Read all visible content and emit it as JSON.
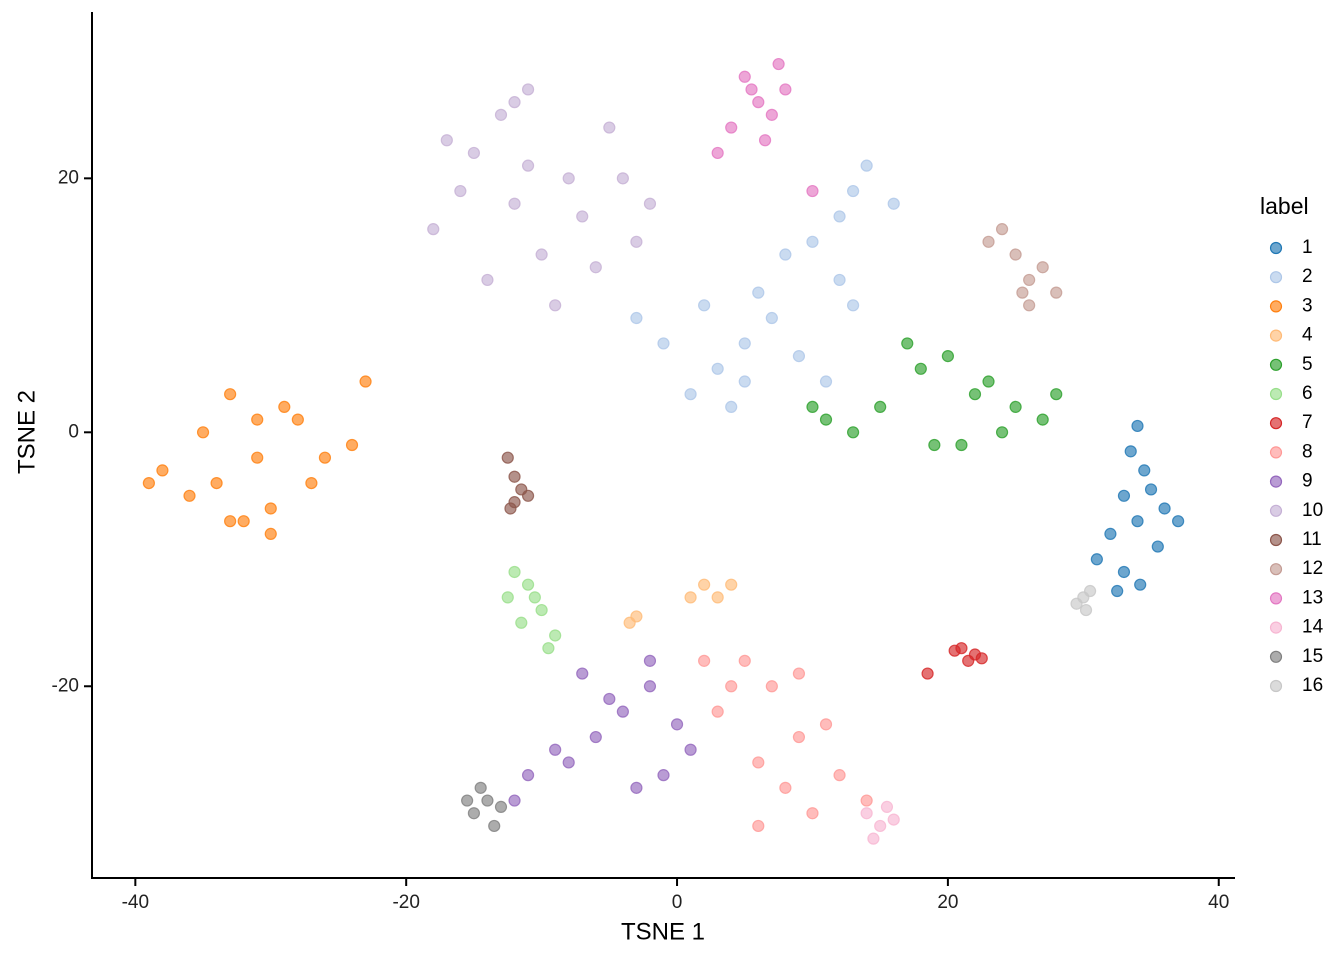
{
  "chart_data": {
    "type": "scatter",
    "x_label": "TSNE 1",
    "y_label": "TSNE 2",
    "legend_title": "label",
    "legend": "right",
    "xlim": [
      -43.2,
      41.2
    ],
    "ylim": [
      -35.1,
      33.1
    ],
    "xticks": [
      -40,
      -20,
      0,
      20,
      40
    ],
    "yticks": [
      -20,
      0,
      20
    ],
    "series": [
      {
        "name": "1",
        "color": "#1f77b4",
        "x": [
          34,
          33.5,
          34.5,
          35,
          33,
          36,
          34,
          32,
          31,
          35.5,
          37,
          33,
          34.2,
          32.5
        ],
        "y": [
          0.5,
          -1.5,
          -3,
          -4.5,
          -5,
          -6,
          -7,
          -8,
          -10,
          -9,
          -7,
          -11,
          -12,
          -12.5
        ]
      },
      {
        "name": "2",
        "color": "#aec7e8",
        "x": [
          5,
          3,
          7,
          9,
          1,
          -1,
          4,
          6,
          11,
          13,
          12,
          14,
          12,
          10,
          16,
          -3,
          8,
          2,
          13,
          5
        ],
        "y": [
          7,
          5,
          9,
          6,
          3,
          7,
          2,
          11,
          4,
          19,
          17,
          21,
          12,
          15,
          18,
          9,
          14,
          10,
          10,
          4
        ]
      },
      {
        "name": "3",
        "color": "#ff7f0e",
        "x": [
          -31,
          -35,
          -28,
          -33,
          -38,
          -30,
          -26,
          -32,
          -36,
          -29,
          -24,
          -34,
          -31,
          -27,
          -39,
          -23,
          -33,
          -30
        ],
        "y": [
          -2,
          0,
          1,
          3,
          -3,
          -6,
          -2,
          -7,
          -5,
          2,
          -1,
          -4,
          1,
          -4,
          -4,
          4,
          -7,
          -8
        ]
      },
      {
        "name": "4",
        "color": "#ffbb78",
        "x": [
          2,
          3,
          1,
          4,
          -3,
          -3.5
        ],
        "y": [
          -12,
          -13,
          -13,
          -12,
          -14.5,
          -15
        ]
      },
      {
        "name": "5",
        "color": "#2ca02c",
        "x": [
          22,
          18,
          25,
          20,
          27,
          15,
          11,
          13,
          23,
          28,
          19,
          17,
          24,
          21,
          10
        ],
        "y": [
          3,
          5,
          2,
          6,
          1,
          2,
          1,
          0,
          4,
          3,
          -1,
          7,
          0,
          -1,
          2
        ]
      },
      {
        "name": "6",
        "color": "#98df8a",
        "x": [
          -12,
          -11,
          -10,
          -12.5,
          -9,
          -11.5,
          -10.5,
          -9.5
        ],
        "y": [
          -11,
          -12,
          -14,
          -13,
          -16,
          -15,
          -13,
          -17
        ]
      },
      {
        "name": "7",
        "color": "#d62728",
        "x": [
          21,
          22,
          21.5,
          20.5,
          22.5,
          18.5
        ],
        "y": [
          -17,
          -17.5,
          -18,
          -17.2,
          -17.8,
          -19
        ]
      },
      {
        "name": "8",
        "color": "#ff9896",
        "x": [
          5,
          7,
          3,
          9,
          6,
          11,
          8,
          4,
          12,
          10,
          6,
          14,
          2,
          9
        ],
        "y": [
          -18,
          -20,
          -22,
          -24,
          -26,
          -23,
          -28,
          -20,
          -27,
          -30,
          -31,
          -29,
          -18,
          -19
        ]
      },
      {
        "name": "9",
        "color": "#9467bd",
        "x": [
          -4,
          -2,
          -6,
          -8,
          0,
          -3,
          -9,
          -5,
          -1,
          -11,
          -7,
          1,
          -12,
          -2
        ],
        "y": [
          -22,
          -20,
          -24,
          -26,
          -23,
          -28,
          -25,
          -21,
          -27,
          -27,
          -19,
          -25,
          -29,
          -18
        ]
      },
      {
        "name": "10",
        "color": "#c5b0d5",
        "x": [
          -12,
          -15,
          -8,
          -18,
          -10,
          -5,
          -13,
          -16,
          -7,
          -3,
          -11,
          -14,
          -9,
          -4,
          -17,
          -6,
          -2,
          -11,
          -12
        ],
        "y": [
          18,
          22,
          20,
          16,
          14,
          24,
          25,
          19,
          17,
          15,
          21,
          12,
          10,
          20,
          23,
          13,
          18,
          27,
          26
        ]
      },
      {
        "name": "11",
        "color": "#8c564b",
        "x": [
          -12.5,
          -12,
          -11.5,
          -11,
          -12,
          -12.3
        ],
        "y": [
          -2,
          -3.5,
          -4.5,
          -5,
          -5.5,
          -6
        ]
      },
      {
        "name": "12",
        "color": "#c49c94",
        "x": [
          24,
          25,
          26,
          27,
          23,
          25.5,
          28,
          26
        ],
        "y": [
          16,
          14,
          12,
          13,
          15,
          11,
          11,
          10
        ]
      },
      {
        "name": "13",
        "color": "#e377c2",
        "x": [
          6,
          5,
          7,
          4,
          6.5,
          5.5,
          8,
          3,
          10,
          7.5
        ],
        "y": [
          26,
          28,
          25,
          24,
          23,
          27,
          27,
          22,
          19,
          29
        ]
      },
      {
        "name": "14",
        "color": "#f7b6d2",
        "x": [
          14,
          15,
          16,
          14.5,
          15.5
        ],
        "y": [
          -30,
          -31,
          -30.5,
          -32,
          -29.5
        ]
      },
      {
        "name": "15",
        "color": "#7f7f7f",
        "x": [
          -14,
          -15,
          -13,
          -14.5,
          -13.5,
          -15.5
        ],
        "y": [
          -29,
          -30,
          -29.5,
          -28,
          -31,
          -29
        ]
      },
      {
        "name": "16",
        "color": "#c7c7c7",
        "x": [
          30,
          29.5,
          30.5,
          30.2
        ],
        "y": [
          -13,
          -13.5,
          -12.5,
          -14
        ]
      }
    ]
  }
}
